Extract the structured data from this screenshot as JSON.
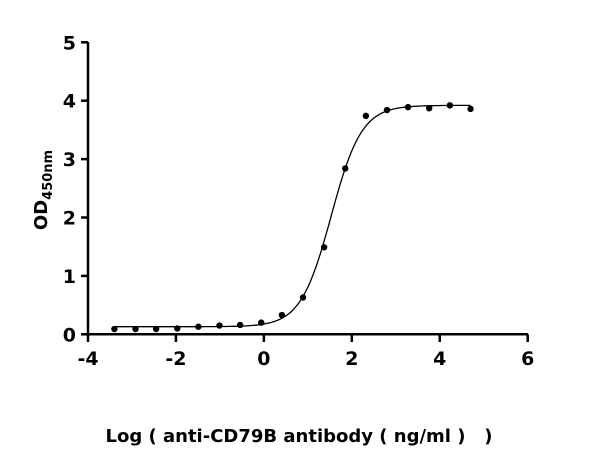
{
  "chart_data": {
    "type": "scatter",
    "title": "",
    "xlabel": "Log ( anti-CD79B antibody ( ng/ml )   )",
    "ylabel": "OD",
    "ylabel_subscript": "450nm",
    "xlim": [
      -4,
      6
    ],
    "ylim": [
      0,
      5
    ],
    "xticks": [
      "-4",
      "-2",
      "0",
      "2",
      "4",
      "6"
    ],
    "yticks": [
      "0",
      "1",
      "2",
      "3",
      "4",
      "5"
    ],
    "grid": false,
    "fit": "sigmoidal dose-response curve",
    "points": {
      "x": [
        -3.4,
        -2.92,
        -2.45,
        -1.97,
        -1.49,
        -1.01,
        -0.54,
        -0.06,
        0.41,
        0.89,
        1.37,
        1.85,
        2.32,
        2.8,
        3.28,
        3.76,
        4.23,
        4.7
      ],
      "y": [
        0.09,
        0.09,
        0.09,
        0.1,
        0.13,
        0.15,
        0.16,
        0.2,
        0.33,
        0.63,
        1.49,
        2.84,
        3.74,
        3.84,
        3.89,
        3.87,
        3.92,
        3.86
      ]
    },
    "colors": {
      "marks": "#000000"
    }
  }
}
